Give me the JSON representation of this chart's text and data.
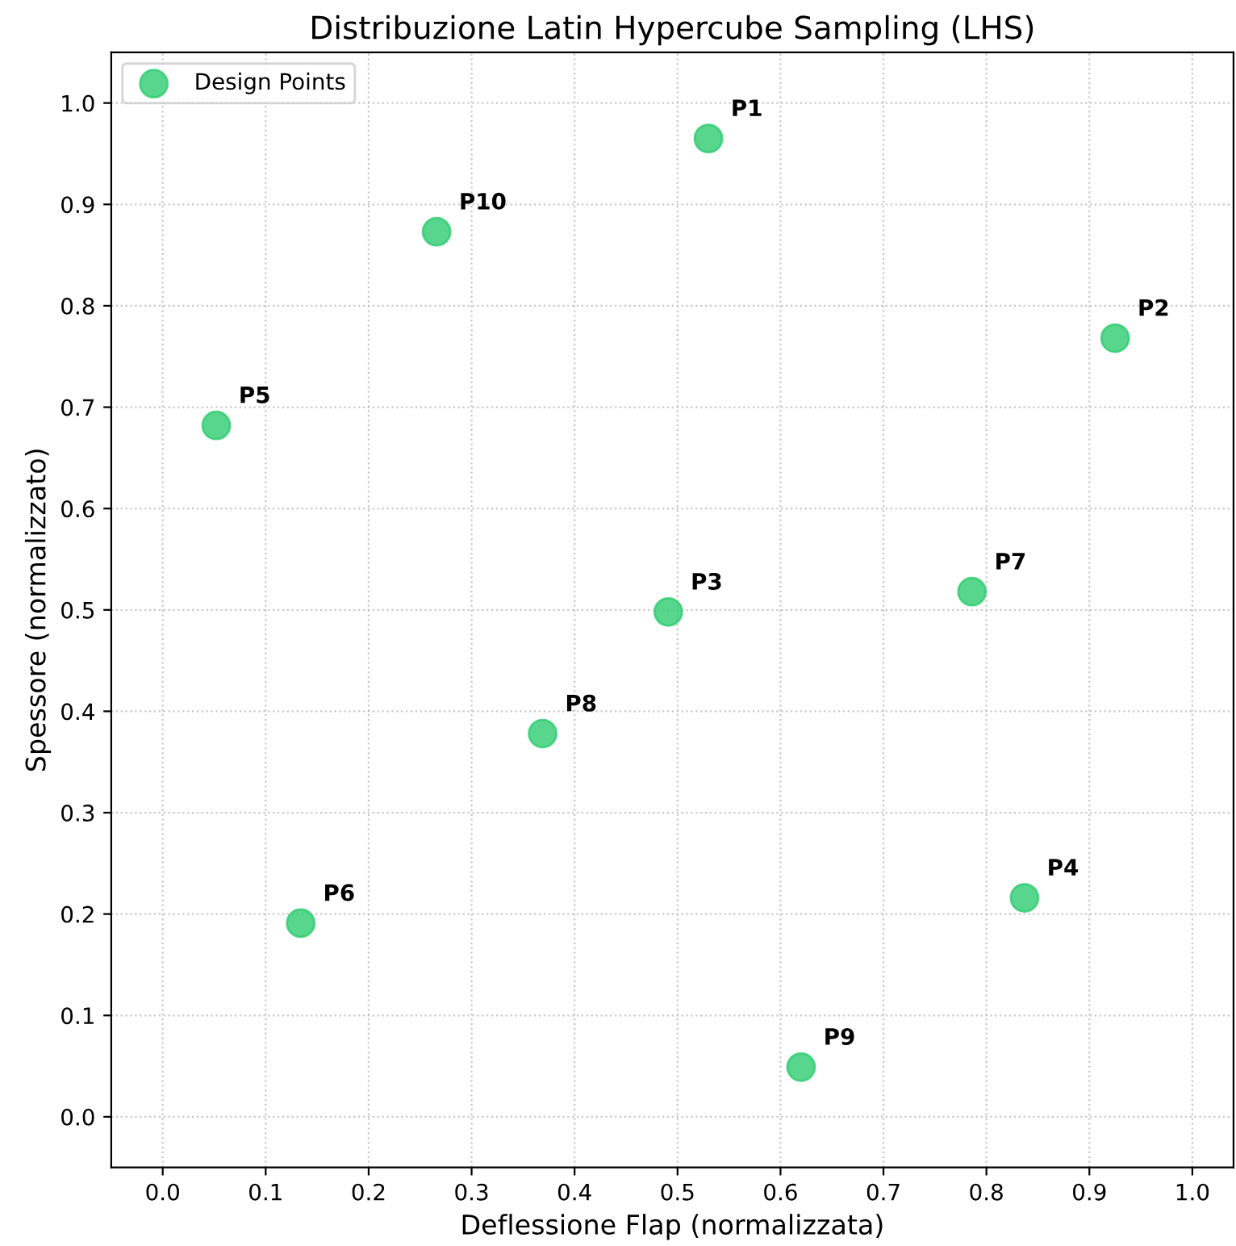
{
  "chart_data": {
    "type": "scatter",
    "title": "Distribuzione Latin Hypercube Sampling (LHS)",
    "xlabel": "Deflessione Flap (normalizzata)",
    "ylabel": "Spessore (normalizzato)",
    "series": [
      {
        "name": "Design Points",
        "color": "#2ecc71",
        "x": [
          0.53,
          0.925,
          0.491,
          0.837,
          0.052,
          0.134,
          0.786,
          0.369,
          0.62,
          0.266
        ],
        "values": [
          0.965,
          0.768,
          0.498,
          0.216,
          0.682,
          0.191,
          0.518,
          0.378,
          0.049,
          0.873
        ]
      }
    ],
    "annotations": [
      {
        "text": "P1",
        "x": 0.53,
        "y": 0.965
      },
      {
        "text": "P2",
        "x": 0.925,
        "y": 0.768
      },
      {
        "text": "P3",
        "x": 0.491,
        "y": 0.498
      },
      {
        "text": "P4",
        "x": 0.837,
        "y": 0.216
      },
      {
        "text": "P5",
        "x": 0.052,
        "y": 0.682
      },
      {
        "text": "P6",
        "x": 0.134,
        "y": 0.191
      },
      {
        "text": "P7",
        "x": 0.786,
        "y": 0.518
      },
      {
        "text": "P8",
        "x": 0.369,
        "y": 0.378
      },
      {
        "text": "P9",
        "x": 0.62,
        "y": 0.049
      },
      {
        "text": "P10",
        "x": 0.266,
        "y": 0.873
      }
    ],
    "xlim": [
      -0.05,
      1.04
    ],
    "ylim": [
      -0.05,
      1.05
    ],
    "xticks": [
      {
        "value": 0,
        "label": "0.0"
      },
      0.1,
      0.2,
      0.3,
      0.4,
      0.5,
      0.6,
      0.7,
      0.8,
      0.9,
      {
        "value": 1,
        "label": "1.0"
      }
    ],
    "yticks": [
      {
        "value": 0,
        "label": "0.0"
      },
      0.1,
      0.2,
      0.3,
      0.4,
      0.5,
      0.6,
      0.7,
      0.8,
      0.9,
      {
        "value": 1,
        "label": "1.0"
      }
    ],
    "grid": true,
    "legend": "top left",
    "marker": "circle"
  }
}
